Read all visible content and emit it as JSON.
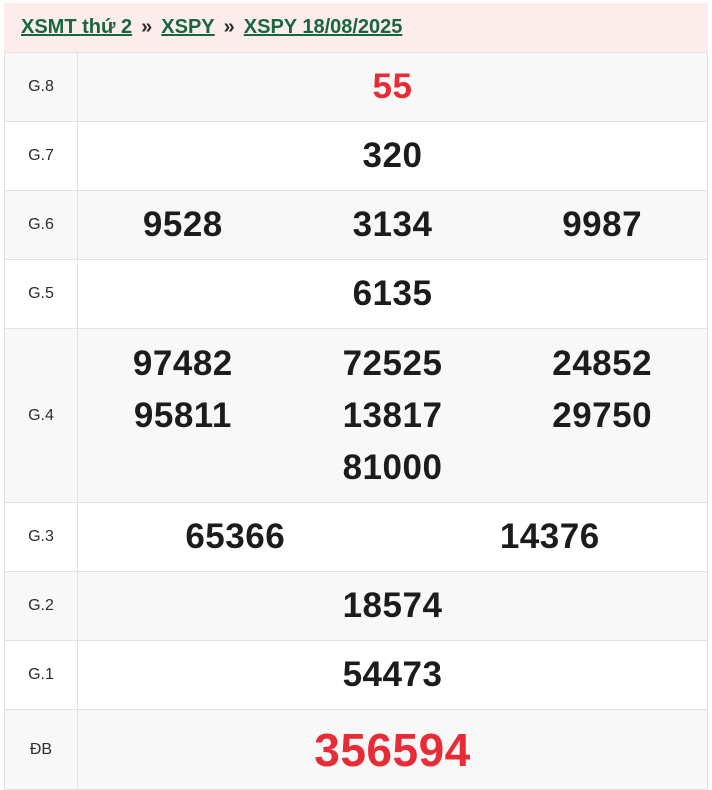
{
  "breadcrumb": {
    "separator": "»",
    "items": [
      {
        "label": "XSMT thứ 2"
      },
      {
        "label": "XSPY"
      },
      {
        "label": "XSPY 18/08/2025"
      }
    ]
  },
  "table": {
    "rows": [
      {
        "label": "G.8",
        "numbers": [
          "55"
        ],
        "highlight": true
      },
      {
        "label": "G.7",
        "numbers": [
          "320"
        ]
      },
      {
        "label": "G.6",
        "numbers": [
          "9528",
          "3134",
          "9987"
        ]
      },
      {
        "label": "G.5",
        "numbers": [
          "6135"
        ]
      },
      {
        "label": "G.4",
        "numbers": [
          "97482",
          "72525",
          "24852",
          "95811",
          "13817",
          "29750",
          "81000"
        ]
      },
      {
        "label": "G.3",
        "numbers": [
          "65366",
          "14376"
        ]
      },
      {
        "label": "G.2",
        "numbers": [
          "18574"
        ]
      },
      {
        "label": "G.1",
        "numbers": [
          "54473"
        ]
      },
      {
        "label": "ĐB",
        "numbers": [
          "356594"
        ],
        "highlight": true,
        "special": true
      }
    ]
  },
  "colors": {
    "header_bg": "#fdecec",
    "link_green": "#17663e",
    "number_red": "#e82c35",
    "number_black": "#1c1c1c",
    "row_alt_bg": "#f8f8f8",
    "border": "#e2e2e2"
  }
}
